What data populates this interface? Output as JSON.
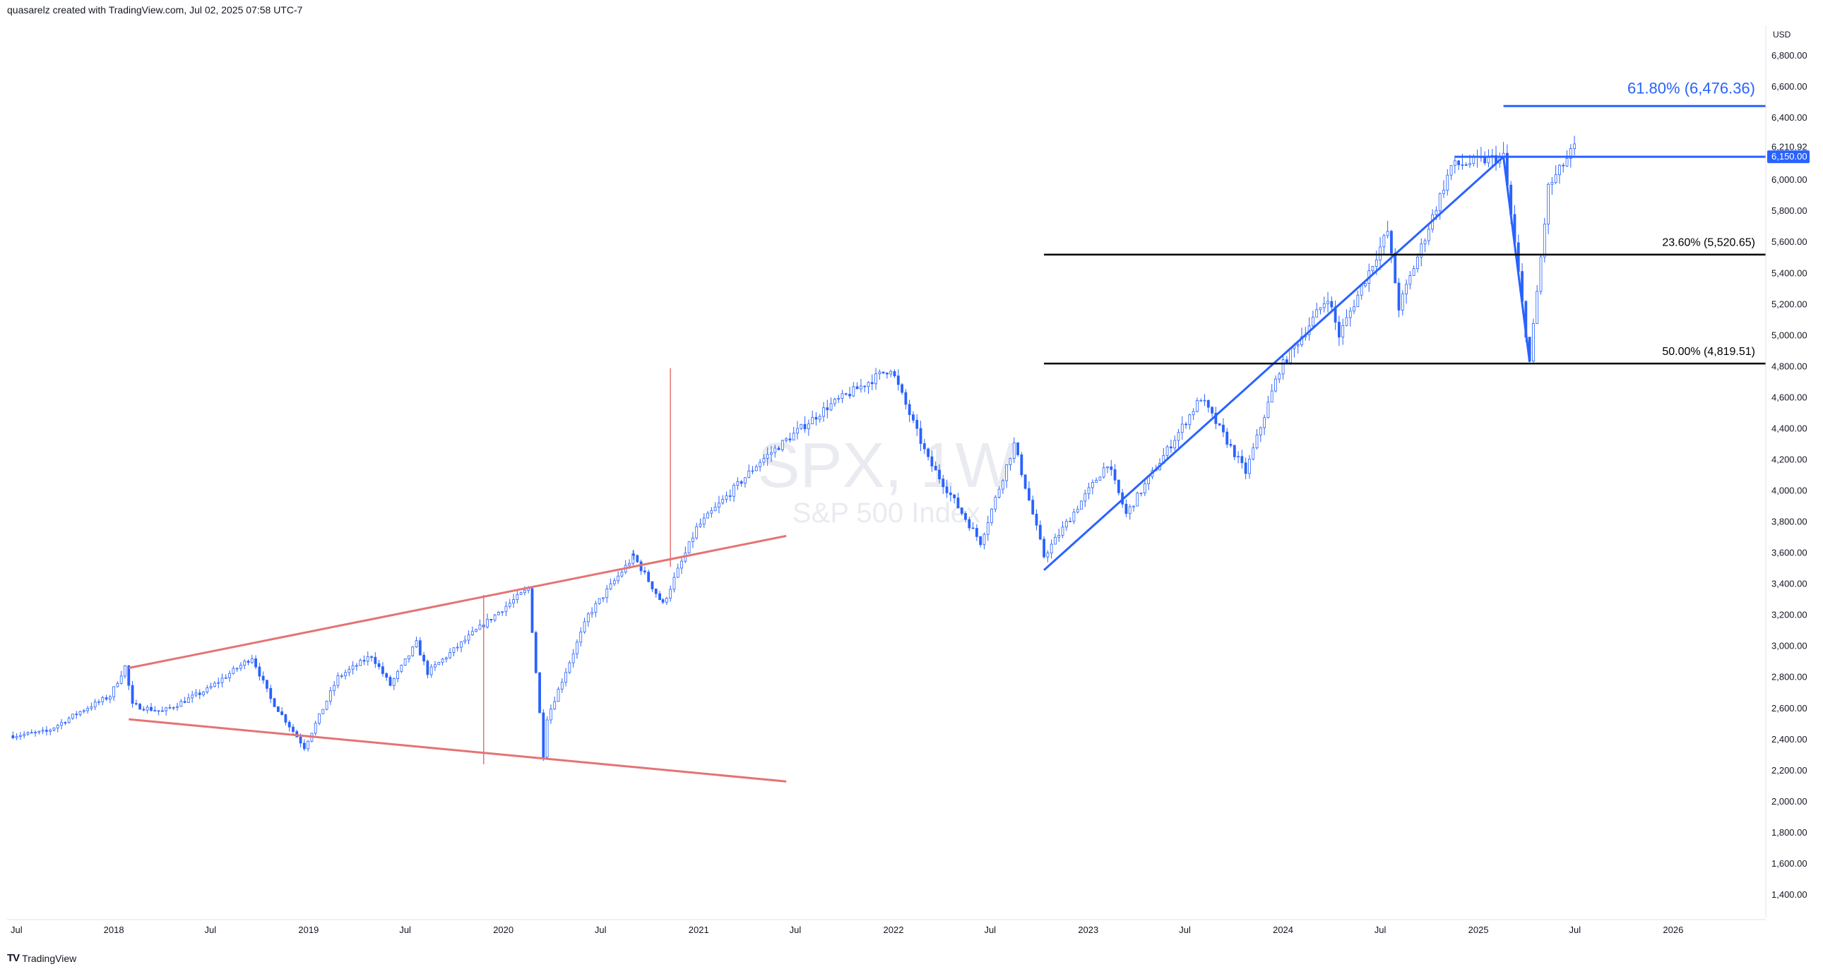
{
  "header": {
    "caption": "quasarelz created with TradingView.com, Jul 02, 2025 07:58 UTC-7"
  },
  "footer": {
    "brand": "TradingView",
    "logo_glyph": "TV"
  },
  "watermark": {
    "symbol": "SPX, 1W",
    "name": "S&P 500 Index"
  },
  "price_axis": {
    "currency": "USD",
    "ticks": [
      "6,800.00",
      "6,600.00",
      "6,400.00",
      "6,000.00",
      "5,800.00",
      "5,600.00",
      "5,400.00",
      "5,200.00",
      "5,000.00",
      "4,800.00",
      "4,600.00",
      "4,400.00",
      "4,200.00",
      "4,000.00",
      "3,800.00",
      "3,600.00",
      "3,400.00",
      "3,200.00",
      "3,000.00",
      "2,800.00",
      "2,600.00",
      "2,400.00",
      "2,200.00",
      "2,000.00",
      "1,800.00",
      "1,600.00",
      "1,400.00"
    ],
    "last_price_label": "6,210.92",
    "marked_level_label": "6,150.00"
  },
  "time_axis": {
    "ticks": [
      "Jul",
      "2018",
      "Jul",
      "2019",
      "Jul",
      "2020",
      "Jul",
      "2021",
      "Jul",
      "2022",
      "Jul",
      "2023",
      "Jul",
      "2024",
      "Jul",
      "2025",
      "Jul",
      "2026"
    ]
  },
  "fib_labels": {
    "f618": "61.80% (6,476.36)",
    "f236": "23.60% (5,520.65)",
    "f50": "50.00% (4,819.51)"
  },
  "colors": {
    "candle": "#2962ff",
    "trendline": "#2962ff",
    "pattern": "#e57373",
    "fib": "#000000",
    "level_badge": "#2962ff",
    "accent_text": "#2962ff"
  },
  "chart_data": {
    "type": "candlestick-line",
    "symbol": "SPX",
    "interval": "1W",
    "ylim": [
      1300,
      6950
    ],
    "y_ticks": [
      6800,
      6600,
      6400,
      6000,
      5800,
      5600,
      5400,
      5200,
      5000,
      4800,
      4600,
      4400,
      4200,
      4000,
      3800,
      3600,
      3400,
      3200,
      3000,
      2800,
      2600,
      2400,
      2200,
      2000,
      1800,
      1600,
      1400
    ],
    "x_ticks": [
      "2017-07-01",
      "2018-01-01",
      "2018-07-01",
      "2019-01-01",
      "2019-07-01",
      "2020-01-01",
      "2020-07-01",
      "2021-01-01",
      "2021-07-01",
      "2022-01-01",
      "2022-07-01",
      "2023-01-01",
      "2023-07-01",
      "2024-01-01",
      "2024-07-01",
      "2025-01-01",
      "2025-07-01",
      "2026-01-01"
    ],
    "approx_weekly_closes": [
      [
        "2017-06-26",
        2425
      ],
      [
        "2017-08-28",
        2450
      ],
      [
        "2017-10-30",
        2580
      ],
      [
        "2017-12-25",
        2680
      ],
      [
        "2018-01-22",
        2870
      ],
      [
        "2018-02-05",
        2620
      ],
      [
        "2018-04-02",
        2580
      ],
      [
        "2018-06-25",
        2720
      ],
      [
        "2018-09-17",
        2930
      ],
      [
        "2018-10-22",
        2660
      ],
      [
        "2018-12-24",
        2350
      ],
      [
        "2019-02-25",
        2800
      ],
      [
        "2019-04-29",
        2940
      ],
      [
        "2019-06-03",
        2750
      ],
      [
        "2019-07-22",
        3020
      ],
      [
        "2019-08-12",
        2830
      ],
      [
        "2019-10-28",
        3060
      ],
      [
        "2019-12-30",
        3240
      ],
      [
        "2020-02-17",
        3370
      ],
      [
        "2020-03-16",
        2300
      ],
      [
        "2020-03-23",
        2540
      ],
      [
        "2020-06-08",
        3200
      ],
      [
        "2020-09-01",
        3580
      ],
      [
        "2020-10-26",
        3270
      ],
      [
        "2020-12-28",
        3760
      ],
      [
        "2021-04-26",
        4190
      ],
      [
        "2021-08-30",
        4540
      ],
      [
        "2021-12-27",
        4790
      ],
      [
        "2022-03-07",
        4200
      ],
      [
        "2022-06-13",
        3670
      ],
      [
        "2022-08-15",
        4300
      ],
      [
        "2022-10-10",
        3580
      ],
      [
        "2023-02-06",
        4180
      ],
      [
        "2023-03-13",
        3850
      ],
      [
        "2023-07-31",
        4600
      ],
      [
        "2023-10-23",
        4120
      ],
      [
        "2023-12-25",
        4780
      ],
      [
        "2024-03-25",
        5250
      ],
      [
        "2024-04-15",
        5000
      ],
      [
        "2024-07-15",
        5670
      ],
      [
        "2024-08-05",
        5180
      ],
      [
        "2024-11-11",
        6090
      ],
      [
        "2025-02-17",
        6150
      ],
      [
        "2025-04-07",
        4830
      ],
      [
        "2025-05-12",
        5950
      ],
      [
        "2025-06-30",
        6210.92
      ]
    ],
    "annotations": {
      "fib_618": 6476.36,
      "fib_236": 5520.65,
      "fib_50": 4819.51,
      "horizontal_level": 6150,
      "trendline_2022_low_to_2025_high": [
        [
          "2022-10-10",
          3490
        ],
        [
          "2025-02-17",
          6150
        ]
      ],
      "drop_line": [
        [
          "2025-02-17",
          6150
        ],
        [
          "2025-04-07",
          4830
        ]
      ],
      "megaphone_upper": [
        [
          "2018-01-29",
          2860
        ],
        [
          "2021-06-14",
          3710
        ]
      ],
      "megaphone_lower": [
        [
          "2018-01-29",
          2530
        ],
        [
          "2021-06-14",
          2130
        ]
      ],
      "measured_move_2020": [
        2240,
        3330
      ],
      "measured_move_2020_projection": [
        3510,
        4790
      ]
    }
  }
}
